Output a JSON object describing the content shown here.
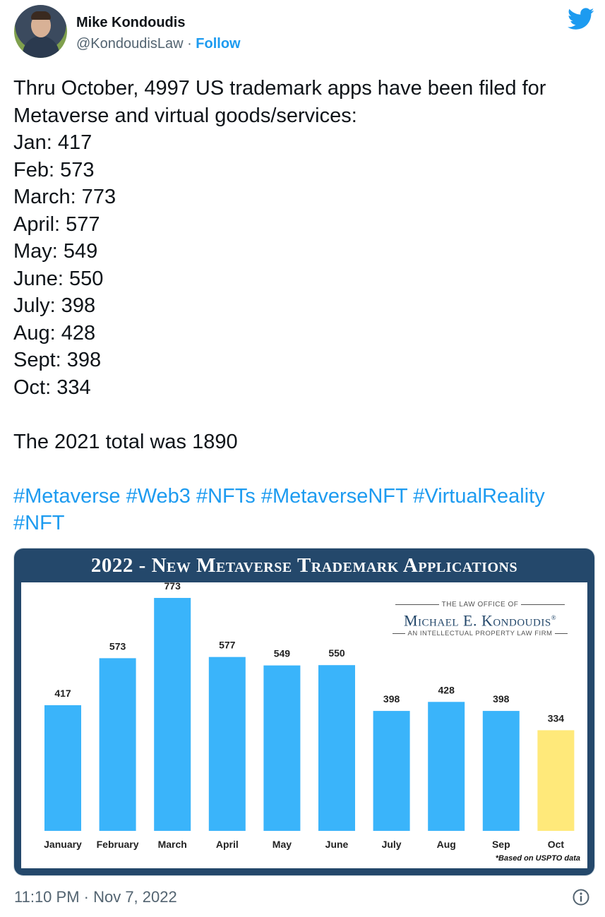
{
  "author": {
    "name": "Mike Kondoudis",
    "handle": "@KondoudisLaw",
    "separator": " · ",
    "follow_label": "Follow",
    "avatar_icon": "avatar",
    "platform_icon": "twitter-bird-icon"
  },
  "tweet": {
    "lines": [
      "Thru October, 4997 US trademark apps have been filed for",
      "Metaverse and virtual goods/services:",
      "Jan: 417",
      "Feb: 573",
      "March: 773",
      "April: 577",
      "May: 549",
      "June: 550",
      "July: 398",
      "Aug: 428",
      "Sept: 398",
      "Oct: 334"
    ],
    "total_line": "The 2021 total was 1890",
    "hashtags_line1": "#Metaverse #Web3 #NFTs #MetaverseNFT #VirtualReality",
    "hashtags_line2": "#NFT"
  },
  "image_card": {
    "title": "2022 - New Metaverse Trademark Applications",
    "firm_top": "THE LAW OFFICE OF",
    "firm_name": "Michael E. Kondoudis",
    "firm_registered": "®",
    "firm_bottom": "AN INTELLECTUAL PROPERTY LAW FIRM",
    "footnote": "*Based on USPTO data"
  },
  "chart_data": {
    "type": "bar",
    "title": "2022 - New Metaverse Trademark Applications",
    "categories": [
      "January",
      "February",
      "March",
      "April",
      "May",
      "June",
      "July",
      "Aug",
      "Sep",
      "Oct"
    ],
    "values": [
      417,
      573,
      773,
      577,
      549,
      550,
      398,
      428,
      398,
      334
    ],
    "colors": [
      "#3ab4fa",
      "#3ab4fa",
      "#3ab4fa",
      "#3ab4fa",
      "#3ab4fa",
      "#3ab4fa",
      "#3ab4fa",
      "#3ab4fa",
      "#3ab4fa",
      "#ffe97a"
    ],
    "xlabel": "",
    "ylabel": "",
    "grid": false,
    "legend": "none"
  },
  "footer": {
    "timestamp": "11:10 PM · Nov 7, 2022",
    "info_icon": "info-icon"
  },
  "colors": {
    "link": "#1d9bf0",
    "text": "#0f1419",
    "muted": "#536471",
    "banner": "#24486b",
    "bar": "#3ab4fa",
    "bar_highlight": "#ffe97a"
  }
}
